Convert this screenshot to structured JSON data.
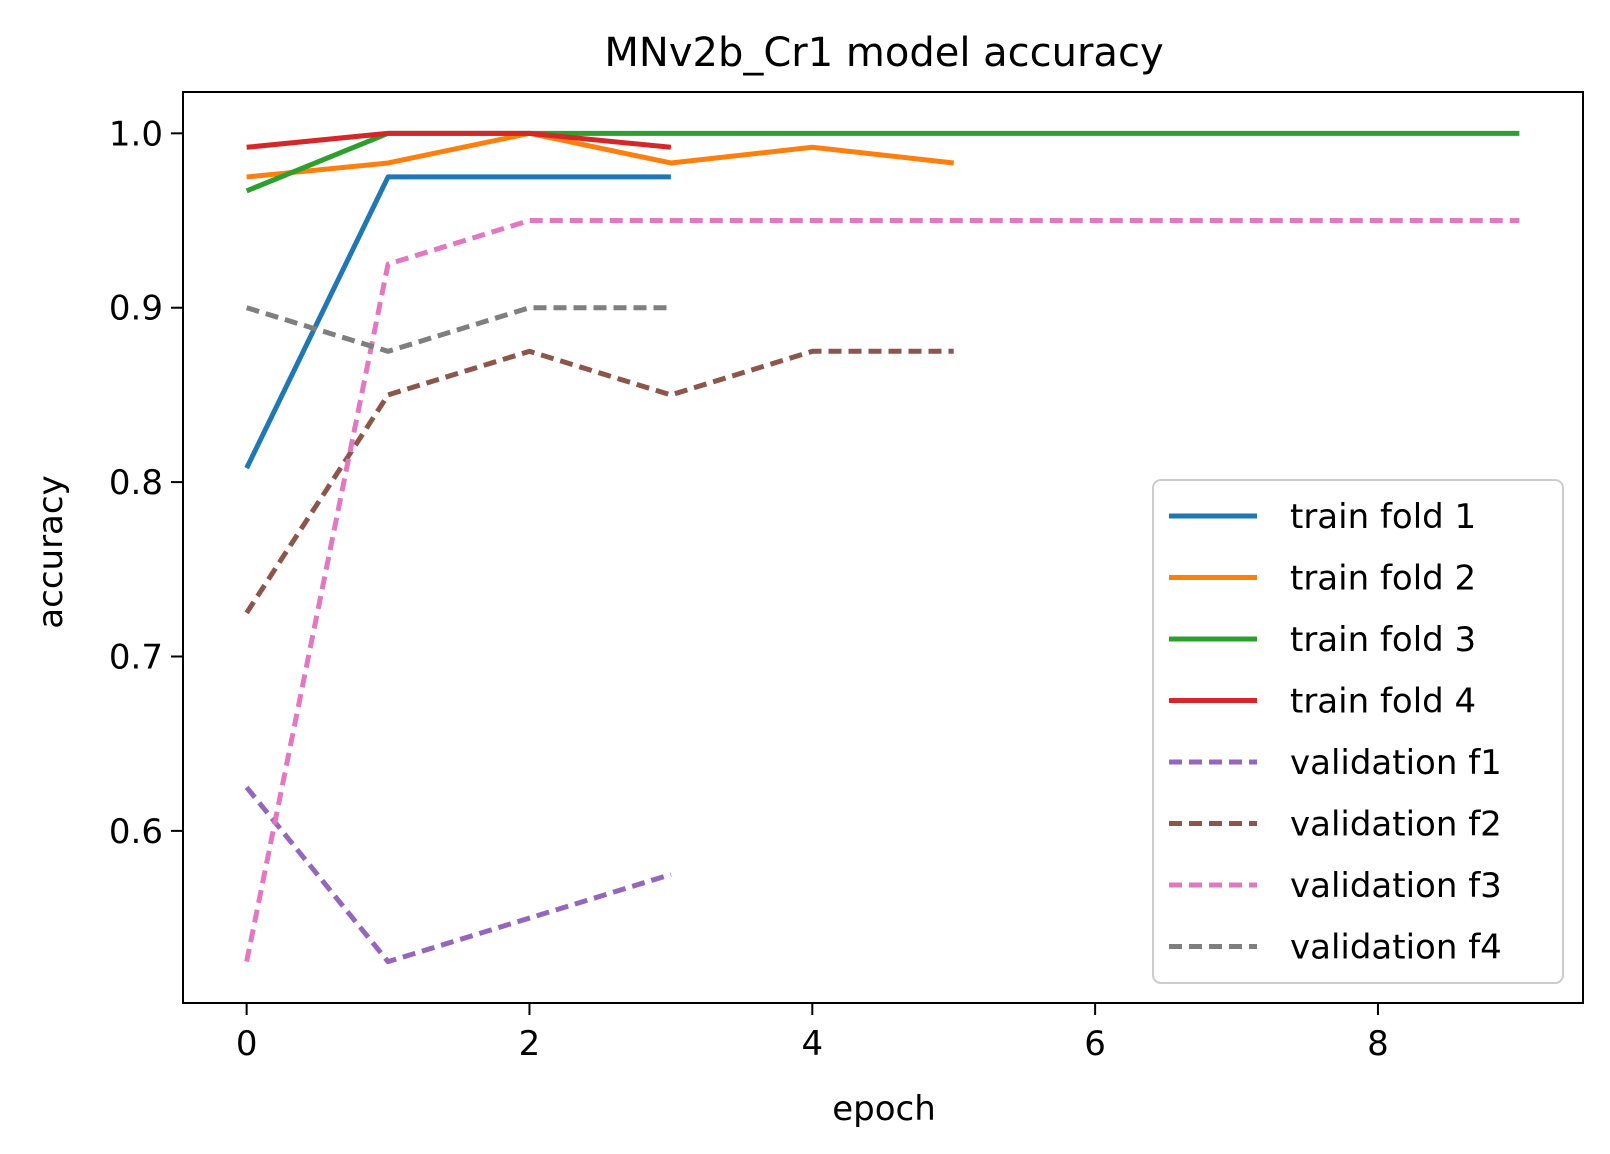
{
  "chart_data": {
    "type": "line",
    "title": "MNv2b_Cr1 model accuracy",
    "xlabel": "epoch",
    "ylabel": "accuracy",
    "xlim": [
      -0.45,
      9.45
    ],
    "ylim": [
      0.5013,
      1.0237
    ],
    "xticks": [
      0,
      2,
      4,
      6,
      8
    ],
    "yticks": [
      0.6,
      0.7,
      0.8,
      0.9,
      1.0
    ],
    "xtick_labels": [
      "0",
      "2",
      "4",
      "6",
      "8"
    ],
    "ytick_labels": [
      "0.6",
      "0.7",
      "0.8",
      "0.9",
      "1.0"
    ],
    "grid": false,
    "legend_position": "lower-right",
    "series": [
      {
        "name": "train fold 1",
        "color": "#1f77b4",
        "dash": "solid",
        "x": [
          0,
          1,
          2,
          3
        ],
        "y": [
          0.808,
          0.975,
          0.975,
          0.975
        ]
      },
      {
        "name": "train fold 2",
        "color": "#ff7f0e",
        "dash": "solid",
        "x": [
          0,
          1,
          2,
          3,
          4,
          5
        ],
        "y": [
          0.975,
          0.983,
          1.0,
          0.983,
          0.992,
          0.983
        ]
      },
      {
        "name": "train fold 3",
        "color": "#2ca02c",
        "dash": "solid",
        "x": [
          0,
          1,
          2,
          3,
          4,
          5,
          6,
          7,
          8,
          9
        ],
        "y": [
          0.967,
          1.0,
          1.0,
          1.0,
          1.0,
          1.0,
          1.0,
          1.0,
          1.0,
          1.0
        ]
      },
      {
        "name": "train fold 4",
        "color": "#d62728",
        "dash": "solid",
        "x": [
          0,
          1,
          2,
          3
        ],
        "y": [
          0.992,
          1.0,
          1.0,
          0.992
        ]
      },
      {
        "name": "validation f1",
        "color": "#9467bd",
        "dash": "dashed",
        "x": [
          0,
          1,
          2,
          3
        ],
        "y": [
          0.625,
          0.525,
          0.55,
          0.575
        ]
      },
      {
        "name": "validation f2",
        "color": "#8c564b",
        "dash": "dashed",
        "x": [
          0,
          1,
          2,
          3,
          4,
          5
        ],
        "y": [
          0.725,
          0.85,
          0.875,
          0.85,
          0.875,
          0.875
        ]
      },
      {
        "name": "validation f3",
        "color": "#e377c2",
        "dash": "dashed",
        "x": [
          0,
          1,
          2,
          3,
          4,
          5,
          6,
          7,
          8,
          9
        ],
        "y": [
          0.525,
          0.925,
          0.95,
          0.95,
          0.95,
          0.95,
          0.95,
          0.95,
          0.95,
          0.95
        ]
      },
      {
        "name": "validation f4",
        "color": "#7f7f7f",
        "dash": "dashed",
        "x": [
          0,
          1,
          2,
          3
        ],
        "y": [
          0.9,
          0.875,
          0.9,
          0.9
        ]
      }
    ]
  }
}
